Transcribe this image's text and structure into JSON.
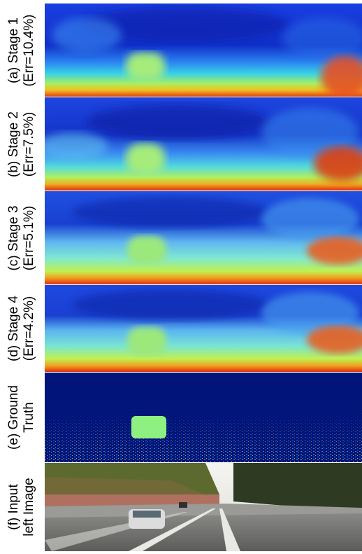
{
  "figure": {
    "rows": [
      {
        "id": "stage1",
        "label_line1": "(a) Stage 1",
        "label_line2": "(Err=10.4%)"
      },
      {
        "id": "stage2",
        "label_line1": "(b) Stage 2",
        "label_line2": "(Err=7.5%)"
      },
      {
        "id": "stage3",
        "label_line1": "(c) Stage 3",
        "label_line2": "(Err=5.1%)"
      },
      {
        "id": "stage4",
        "label_line1": "(d) Stage 4",
        "label_line2": "(Err=4.2%)"
      },
      {
        "id": "gt",
        "label_line1": "(e) Ground",
        "label_line2": "Truth"
      },
      {
        "id": "input",
        "label_line1": "(f) Input",
        "label_line2": "left Image"
      }
    ]
  },
  "colors": {
    "far": "#0a2bd8",
    "mid": "#2f9bf0",
    "near": "#8ff07a",
    "closest": "#d93a10",
    "gt_background": "#00147a"
  }
}
